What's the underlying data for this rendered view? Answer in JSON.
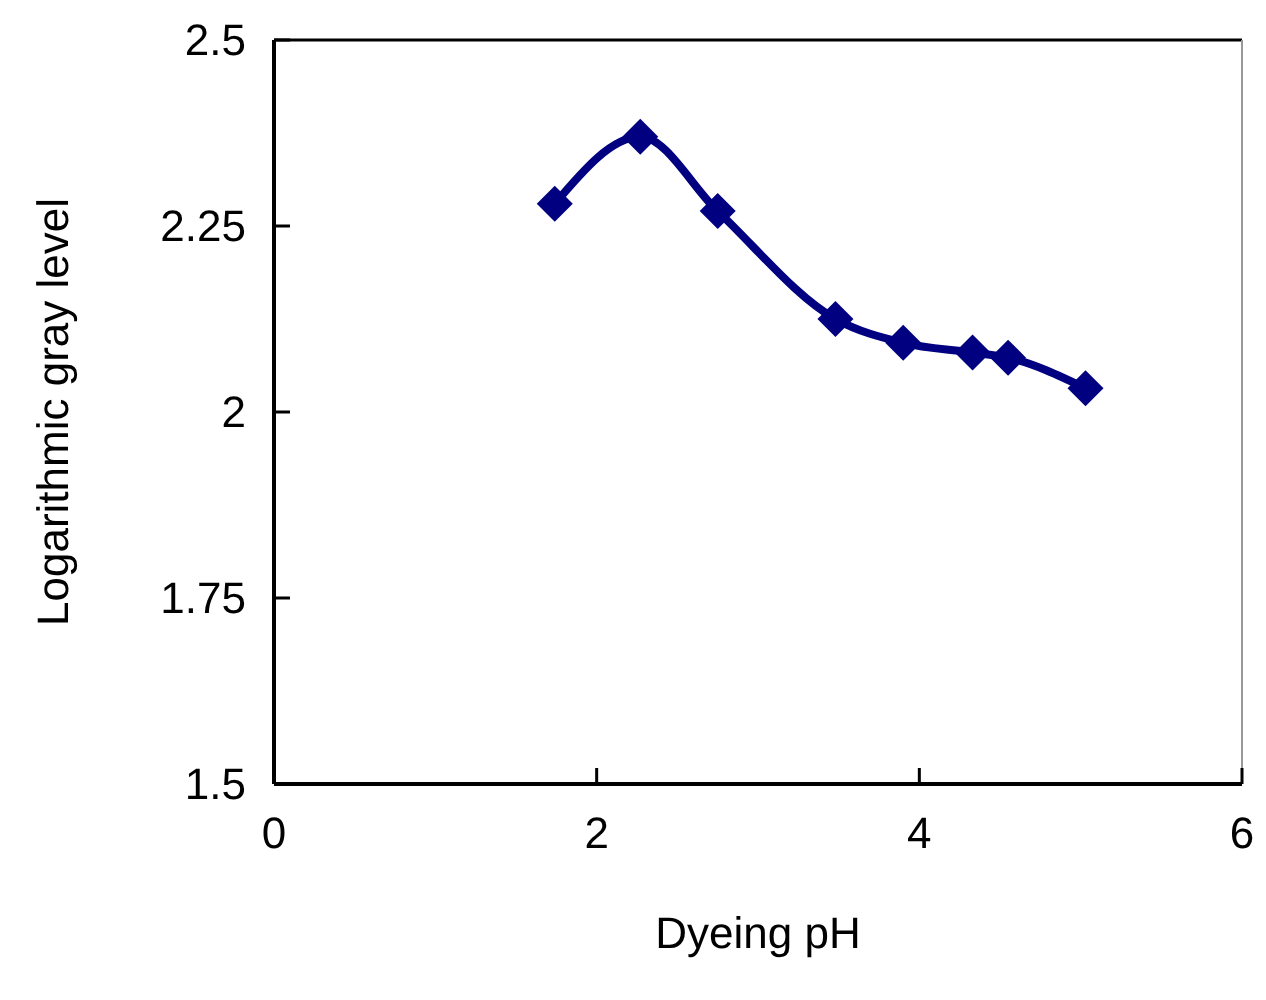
{
  "chart_data": {
    "type": "line",
    "xlabel": "Dyeing pH",
    "ylabel": "Logarithmic gray level",
    "x": [
      1.74,
      2.27,
      2.75,
      3.48,
      3.9,
      4.33,
      4.55,
      5.03
    ],
    "series": [
      {
        "color": "#000080",
        "values": [
          2.28,
          2.37,
          2.27,
          2.125,
          2.093,
          2.08,
          2.073,
          2.032
        ]
      }
    ],
    "xlim": [
      0,
      6
    ],
    "xticks": [
      0,
      2,
      4,
      6
    ],
    "ylim": [
      1.5,
      2.5
    ],
    "yticks": [
      1.5,
      1.75,
      2,
      2.25,
      2.5
    ],
    "marker": "diamond",
    "line_style": "solid"
  }
}
